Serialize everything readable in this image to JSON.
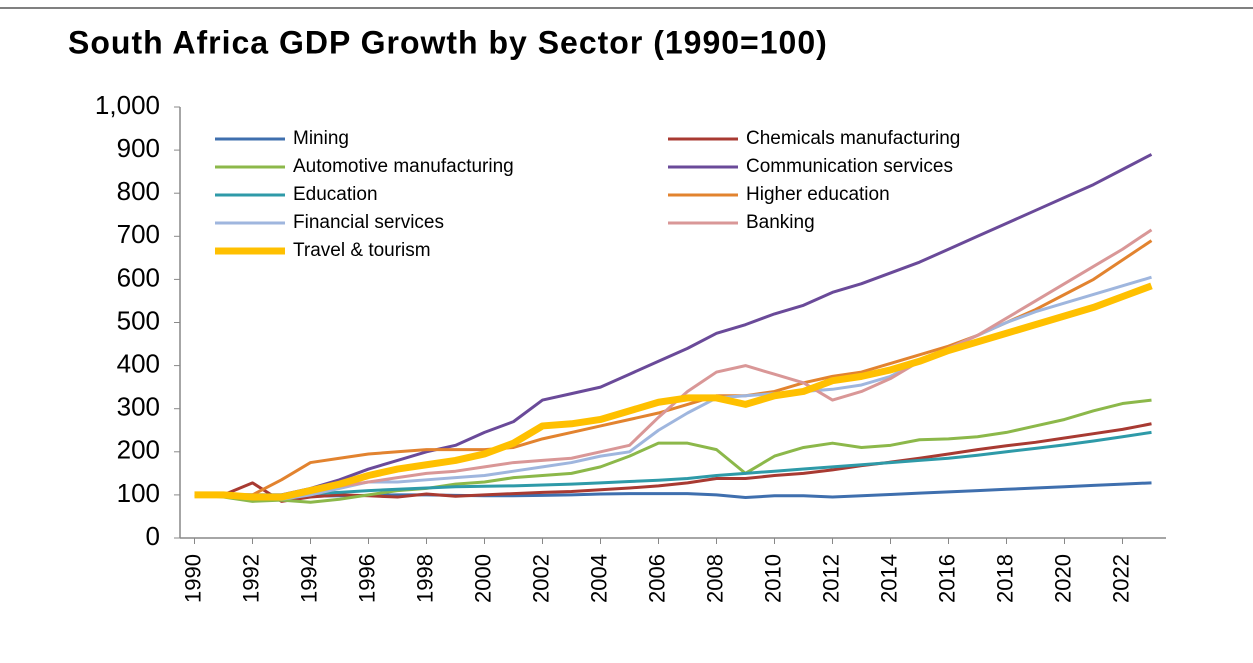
{
  "chart_data": {
    "type": "line",
    "title": "South Africa GDP Growth by Sector (1990=100)",
    "x": [
      1990,
      1991,
      1992,
      1993,
      1994,
      1995,
      1996,
      1997,
      1998,
      1999,
      2000,
      2001,
      2002,
      2003,
      2004,
      2005,
      2006,
      2007,
      2008,
      2009,
      2010,
      2011,
      2012,
      2013,
      2014,
      2015,
      2016,
      2017,
      2018,
      2019,
      2020,
      2021,
      2022,
      2023
    ],
    "xlim": [
      1989.5,
      2023.5
    ],
    "xticks": [
      1990,
      1992,
      1994,
      1996,
      1998,
      2000,
      2002,
      2004,
      2006,
      2008,
      2010,
      2012,
      2014,
      2016,
      2018,
      2020,
      2022
    ],
    "ylim": [
      0,
      1000
    ],
    "yticks": [
      0,
      100,
      200,
      300,
      400,
      500,
      600,
      700,
      800,
      900,
      {
        "value": 1000,
        "label": "1,000"
      }
    ],
    "grid": false,
    "legend": "top-left",
    "series": [
      {
        "name": "Mining",
        "color": "#3f6fae",
        "width": 3,
        "values": [
          100,
          100,
          98,
          97,
          97,
          98,
          99,
          100,
          100,
          99,
          98,
          98,
          99,
          100,
          102,
          103,
          103,
          103,
          100,
          94,
          98,
          98,
          95,
          98,
          101,
          104,
          107,
          110,
          113,
          116,
          119,
          122,
          125,
          128
        ]
      },
      {
        "name": "Chemicals manufacturing",
        "color": "#a83a32",
        "width": 3,
        "values": [
          100,
          100,
          128,
          85,
          95,
          100,
          98,
          95,
          102,
          97,
          100,
          103,
          106,
          108,
          112,
          116,
          121,
          128,
          138,
          138,
          145,
          150,
          158,
          168,
          176,
          185,
          195,
          205,
          214,
          222,
          232,
          242,
          252,
          265
        ]
      },
      {
        "name": "Automotive manufacturing",
        "color": "#8cb84a",
        "width": 3,
        "values": [
          100,
          95,
          85,
          88,
          83,
          90,
          100,
          110,
          115,
          125,
          130,
          140,
          145,
          150,
          165,
          190,
          220,
          220,
          205,
          150,
          190,
          210,
          220,
          210,
          215,
          228,
          230,
          235,
          245,
          260,
          275,
          295,
          312,
          320
        ]
      },
      {
        "name": "Communication services",
        "color": "#6a4a99",
        "width": 3,
        "values": [
          100,
          100,
          100,
          100,
          115,
          135,
          160,
          180,
          200,
          215,
          245,
          270,
          320,
          335,
          350,
          380,
          410,
          440,
          475,
          495,
          520,
          540,
          570,
          590,
          615,
          640,
          670,
          700,
          730,
          760,
          790,
          820,
          855,
          890
        ]
      },
      {
        "name": "Education",
        "color": "#2e9aa8",
        "width": 3,
        "values": [
          100,
          100,
          100,
          100,
          103,
          106,
          110,
          113,
          116,
          119,
          120,
          121,
          123,
          125,
          128,
          131,
          134,
          138,
          145,
          150,
          155,
          160,
          165,
          170,
          175,
          180,
          185,
          192,
          200,
          208,
          216,
          225,
          235,
          245
        ]
      },
      {
        "name": "Higher education",
        "color": "#e2832f",
        "width": 3,
        "values": [
          100,
          100,
          100,
          135,
          175,
          185,
          195,
          200,
          205,
          205,
          205,
          210,
          230,
          245,
          260,
          275,
          290,
          310,
          330,
          330,
          340,
          360,
          375,
          385,
          405,
          425,
          445,
          470,
          500,
          530,
          565,
          600,
          645,
          690
        ]
      },
      {
        "name": "Financial services",
        "color": "#9fb6de",
        "width": 3,
        "values": [
          100,
          100,
          97,
          90,
          100,
          115,
          130,
          130,
          135,
          140,
          145,
          155,
          165,
          175,
          190,
          200,
          250,
          290,
          325,
          330,
          335,
          340,
          345,
          355,
          375,
          410,
          440,
          470,
          500,
          525,
          545,
          565,
          585,
          605
        ]
      },
      {
        "name": "Banking",
        "color": "#d99797",
        "width": 3,
        "values": [
          100,
          100,
          97,
          95,
          110,
          120,
          130,
          140,
          150,
          155,
          165,
          175,
          180,
          185,
          200,
          215,
          280,
          340,
          385,
          400,
          380,
          360,
          320,
          340,
          370,
          410,
          440,
          470,
          510,
          550,
          590,
          630,
          670,
          715
        ]
      },
      {
        "name": "Travel & tourism",
        "color": "#ffc000",
        "width": 7,
        "values": [
          100,
          100,
          95,
          95,
          110,
          125,
          145,
          160,
          170,
          180,
          195,
          220,
          260,
          265,
          275,
          295,
          315,
          325,
          325,
          310,
          330,
          340,
          365,
          375,
          390,
          410,
          435,
          455,
          475,
          495,
          515,
          535,
          560,
          585
        ]
      }
    ]
  }
}
